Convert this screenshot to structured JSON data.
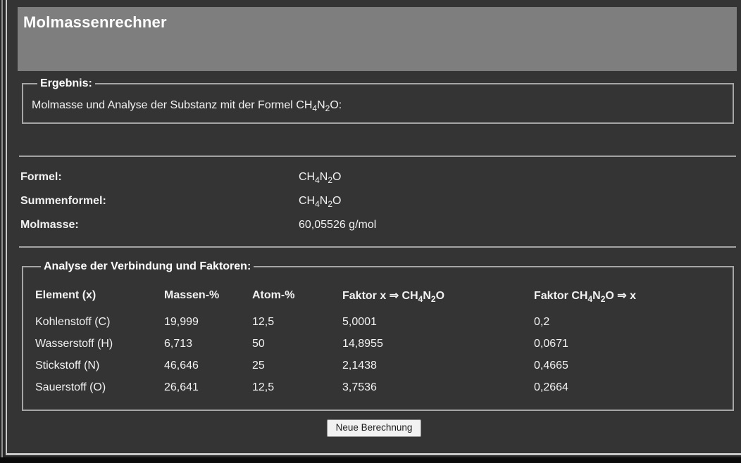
{
  "app": {
    "title": "Molmassenrechner"
  },
  "result_box": {
    "legend": "Ergebnis:",
    "text": "Molmasse und Analyse der Substanz mit der Formel CH_4N_2O:"
  },
  "summary": {
    "rows": [
      {
        "label": "Formel:",
        "value": "CH_4N_2O"
      },
      {
        "label": "Summenformel:",
        "value": "CH_4N_2O"
      },
      {
        "label": "Molmasse:",
        "value": "60,05526 g/mol"
      }
    ]
  },
  "analysis": {
    "legend": "Analyse der Verbindung und Faktoren:",
    "columns": [
      "Element (x)",
      "Massen-%",
      "Atom-%",
      "Faktor x ⇒ CH_4N_2O",
      "Faktor CH_4N_2O ⇒ x"
    ],
    "rows": [
      [
        "Kohlenstoff (C)",
        "19,999",
        "12,5",
        "5,0001",
        "0,2"
      ],
      [
        "Wasserstoff (H)",
        "6,713",
        "50",
        "14,8955",
        "0,0671"
      ],
      [
        "Stickstoff (N)",
        "46,646",
        "25",
        "2,1438",
        "0,4665"
      ],
      [
        "Sauerstoff (O)",
        "26,641",
        "12,5",
        "3,7536",
        "0,2664"
      ]
    ]
  },
  "actions": {
    "new_calculation": "Neue Berechnung"
  },
  "colors": {
    "page_background": "#343434",
    "header_background": "#7e7e7e",
    "frame_border": "#c9c9c9",
    "fieldset_border": "#a6a6a6",
    "text": "#f2f2f2",
    "button_background": "#f2f2f2"
  }
}
